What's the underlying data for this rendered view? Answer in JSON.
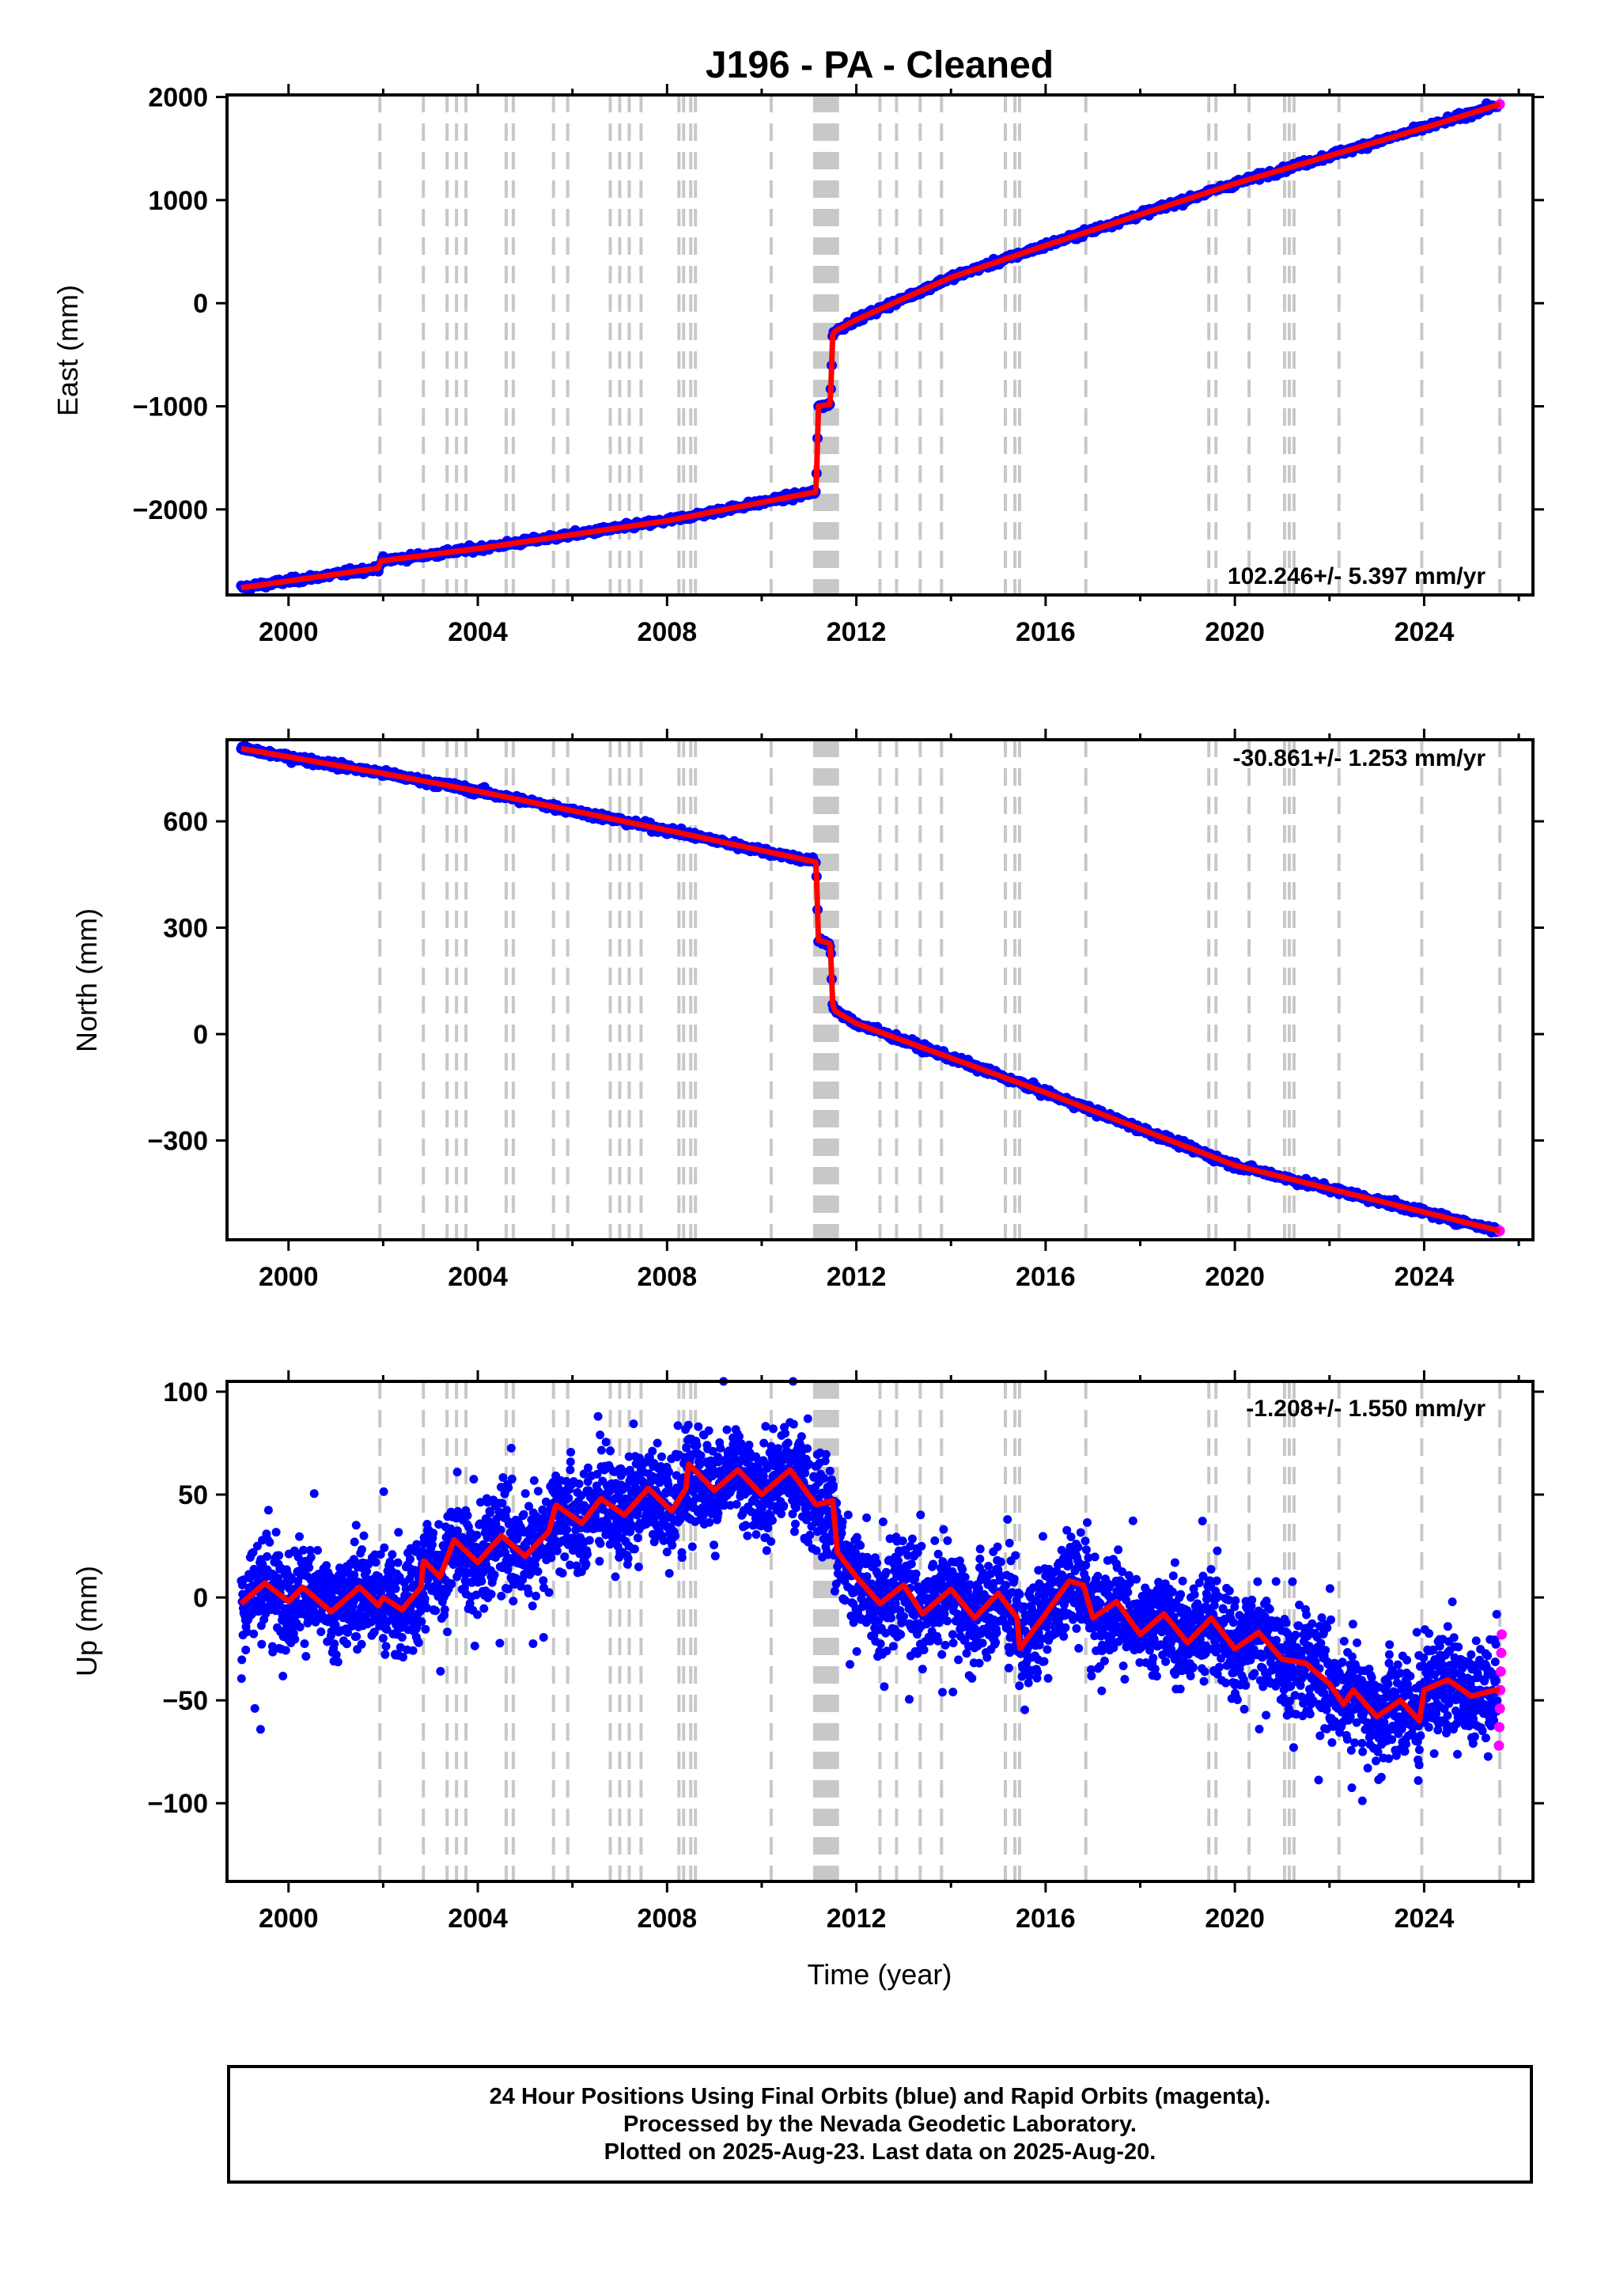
{
  "title": "J196  - PA - Cleaned",
  "footer": {
    "line1": "24 Hour Positions Using Final Orbits (blue) and Rapid Orbits (magenta).",
    "line2": "Processed by the Nevada Geodetic Laboratory.",
    "line3": "Plotted on 2025-Aug-23. Last data on 2025-Aug-20."
  },
  "colors": {
    "final": "#0000ff",
    "rapid": "#ff00ff",
    "model": "#ff0000",
    "steps": "#c8c8c8"
  },
  "chart_data": [
    {
      "type": "scatter",
      "ylabel": "East (mm)",
      "xlabel": "",
      "xlim": [
        1998.7,
        2026.3
      ],
      "ylim": [
        -2830,
        2020
      ],
      "xticks": [
        2000,
        2004,
        2008,
        2012,
        2016,
        2020,
        2024
      ],
      "xtick_labels": [
        "2000",
        "2004",
        "2008",
        "2012",
        "2016",
        "2020",
        "2024"
      ],
      "yticks": [
        2000,
        1000,
        0,
        -1000,
        -2000
      ],
      "ytick_labels": [
        "2000",
        "1000",
        "0",
        "−1000",
        "−2000"
      ],
      "rate": "102.246+/- 5.397 mm/yr",
      "rate_position": "bottom-right",
      "model_knots": [
        [
          1999.0,
          -2760
        ],
        [
          2001.9,
          -2570
        ],
        [
          2001.95,
          -2500
        ],
        [
          2004.0,
          -2380
        ],
        [
          2008.0,
          -2110
        ],
        [
          2011.15,
          -1830
        ],
        [
          2011.2,
          -1000
        ],
        [
          2011.45,
          -980
        ],
        [
          2011.5,
          -310
        ],
        [
          2011.55,
          -270
        ],
        [
          2012.0,
          -160
        ],
        [
          2014.0,
          250
        ],
        [
          2016.0,
          560
        ],
        [
          2020.0,
          1160
        ],
        [
          2024.0,
          1700
        ],
        [
          2025.6,
          1930
        ]
      ],
      "final_orbits_range": [
        1999.0,
        2025.55
      ],
      "rapid_orbits": [
        2025.6
      ],
      "jitter": 15
    },
    {
      "type": "scatter",
      "ylabel": "North (mm)",
      "xlabel": "",
      "xlim": [
        1998.7,
        2026.3
      ],
      "ylim": [
        -580,
        830
      ],
      "xticks": [
        2000,
        2004,
        2008,
        2012,
        2016,
        2020,
        2024
      ],
      "xtick_labels": [
        "2000",
        "2004",
        "2008",
        "2012",
        "2016",
        "2020",
        "2024"
      ],
      "yticks": [
        600,
        300,
        0,
        -300
      ],
      "ytick_labels": [
        "600",
        "300",
        "0",
        "−300"
      ],
      "rate": "-30.861+/- 1.253 mm/yr",
      "rate_position": "top-right",
      "model_knots": [
        [
          1999.0,
          805
        ],
        [
          2002.0,
          735
        ],
        [
          2004.0,
          685
        ],
        [
          2008.0,
          575
        ],
        [
          2011.15,
          485
        ],
        [
          2011.2,
          265
        ],
        [
          2011.45,
          255
        ],
        [
          2011.5,
          85
        ],
        [
          2011.55,
          65
        ],
        [
          2012.0,
          30
        ],
        [
          2016.0,
          -165
        ],
        [
          2020.0,
          -370
        ],
        [
          2025.6,
          -555
        ]
      ],
      "final_orbits_range": [
        1999.0,
        2025.55
      ],
      "rapid_orbits": [
        2025.6
      ],
      "jitter": 5
    },
    {
      "type": "scatter",
      "ylabel": "Up (mm)",
      "xlabel": "Time (year)",
      "xlim": [
        1998.7,
        2026.3
      ],
      "ylim": [
        -138,
        105
      ],
      "xticks": [
        2000,
        2004,
        2008,
        2012,
        2016,
        2020,
        2024
      ],
      "xtick_labels": [
        "2000",
        "2004",
        "2008",
        "2012",
        "2016",
        "2020",
        "2024"
      ],
      "yticks": [
        100,
        50,
        0,
        -50,
        -100
      ],
      "ytick_labels": [
        "100",
        "50",
        "0",
        "−50",
        "−100"
      ],
      "rate": "-1.208+/- 1.550 mm/yr",
      "rate_position": "top-right",
      "model_knots": [
        [
          1999.0,
          -3
        ],
        [
          1999.5,
          7
        ],
        [
          2000.0,
          -2
        ],
        [
          2000.3,
          5
        ],
        [
          2000.9,
          -7
        ],
        [
          2001.5,
          5
        ],
        [
          2001.9,
          -4
        ],
        [
          2002.0,
          0
        ],
        [
          2002.4,
          -6
        ],
        [
          2002.8,
          5
        ],
        [
          2002.85,
          18
        ],
        [
          2003.2,
          10
        ],
        [
          2003.5,
          28
        ],
        [
          2004.0,
          17
        ],
        [
          2004.5,
          30
        ],
        [
          2005.0,
          20
        ],
        [
          2005.5,
          32
        ],
        [
          2005.65,
          45
        ],
        [
          2006.2,
          36
        ],
        [
          2006.6,
          48
        ],
        [
          2007.1,
          40
        ],
        [
          2007.6,
          53
        ],
        [
          2008.1,
          42
        ],
        [
          2008.4,
          53
        ],
        [
          2008.45,
          65
        ],
        [
          2009.0,
          52
        ],
        [
          2009.5,
          62
        ],
        [
          2010.0,
          50
        ],
        [
          2010.6,
          62
        ],
        [
          2011.15,
          45
        ],
        [
          2011.5,
          47
        ],
        [
          2011.6,
          22
        ],
        [
          2012.0,
          10
        ],
        [
          2012.5,
          -3
        ],
        [
          2013.0,
          6
        ],
        [
          2013.4,
          -8
        ],
        [
          2014.0,
          4
        ],
        [
          2014.5,
          -10
        ],
        [
          2015.0,
          2
        ],
        [
          2015.4,
          -10
        ],
        [
          2015.45,
          -25
        ],
        [
          2016.0,
          -8
        ],
        [
          2016.5,
          8
        ],
        [
          2016.8,
          6
        ],
        [
          2017.0,
          -10
        ],
        [
          2017.5,
          -2
        ],
        [
          2018.0,
          -18
        ],
        [
          2018.5,
          -8
        ],
        [
          2019.0,
          -22
        ],
        [
          2019.5,
          -10
        ],
        [
          2020.0,
          -25
        ],
        [
          2020.5,
          -17
        ],
        [
          2021.0,
          -30
        ],
        [
          2021.5,
          -32
        ],
        [
          2022.0,
          -42
        ],
        [
          2022.3,
          -52
        ],
        [
          2022.5,
          -45
        ],
        [
          2023.0,
          -58
        ],
        [
          2023.5,
          -50
        ],
        [
          2023.9,
          -60
        ],
        [
          2024.0,
          -45
        ],
        [
          2024.5,
          -40
        ],
        [
          2025.0,
          -48
        ],
        [
          2025.5,
          -45
        ]
      ],
      "final_orbits_range": [
        1999.0,
        2025.55
      ],
      "rapid_orbits": [
        2025.58,
        2025.59,
        2025.6,
        2025.61,
        2025.62,
        2025.63,
        2025.64
      ],
      "jitter": 12
    }
  ],
  "step_epochs": [
    2001.93,
    2002.85,
    2003.35,
    2003.55,
    2003.75,
    2004.6,
    2004.75,
    2005.6,
    2005.9,
    2006.8,
    2007.0,
    2007.2,
    2007.45,
    2008.25,
    2008.35,
    2008.5,
    2008.6,
    2010.2,
    2011.12,
    2011.18,
    2011.24,
    2011.3,
    2011.36,
    2011.42,
    2011.48,
    2011.54,
    2011.6,
    2012.5,
    2012.85,
    2013.35,
    2013.8,
    2015.15,
    2015.35,
    2015.45,
    2016.85,
    2019.45,
    2019.6,
    2020.3,
    2021.05,
    2021.15,
    2021.25,
    2022.2,
    2023.95,
    2025.6
  ]
}
